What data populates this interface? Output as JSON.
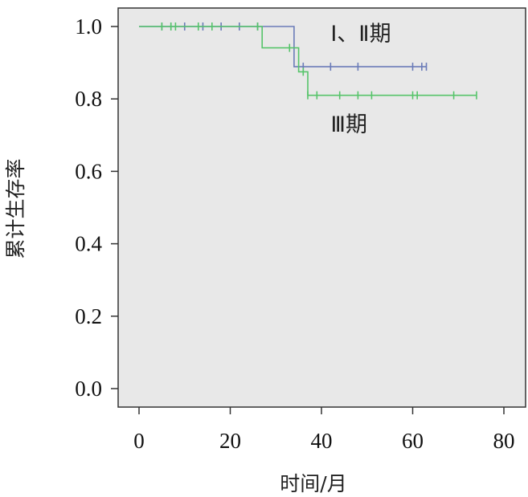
{
  "chart_data": {
    "type": "line",
    "step": true,
    "xlabel": "时间/月",
    "ylabel": "累计生存率",
    "xlim": [
      0,
      80
    ],
    "ylim": [
      0,
      1
    ],
    "x_ticks": [
      "0",
      "20",
      "40",
      "60",
      "80"
    ],
    "y_ticks": [
      "0.0",
      "0.2",
      "0.4",
      "0.6",
      "0.8",
      "1.0"
    ],
    "x_tick_values": [
      0,
      20,
      40,
      60,
      80
    ],
    "y_tick_values": [
      0,
      0.2,
      0.4,
      0.6,
      0.8,
      1.0
    ],
    "grid": false,
    "plot_background": "#e8e8e8",
    "series": [
      {
        "name": "Ⅰ、Ⅱ期",
        "color": "#6a7bb8",
        "steps": [
          [
            0,
            1.0
          ],
          [
            34,
            1.0
          ],
          [
            34,
            0.889
          ],
          [
            63,
            0.889
          ]
        ],
        "censored": [
          [
            5,
            1.0
          ],
          [
            7,
            1.0
          ],
          [
            10,
            1.0
          ],
          [
            14,
            1.0
          ],
          [
            18,
            1.0
          ],
          [
            22,
            1.0
          ],
          [
            26,
            1.0
          ],
          [
            36,
            0.889
          ],
          [
            42,
            0.889
          ],
          [
            48,
            0.889
          ],
          [
            60,
            0.889
          ],
          [
            62,
            0.889
          ],
          [
            63,
            0.889
          ]
        ],
        "label_value": [
          42,
          0.96
        ]
      },
      {
        "name": "Ⅲ期",
        "color": "#56c46a",
        "steps": [
          [
            0,
            1.0
          ],
          [
            27,
            1.0
          ],
          [
            27,
            0.941
          ],
          [
            35,
            0.941
          ],
          [
            35,
            0.875
          ],
          [
            37,
            0.875
          ],
          [
            37,
            0.81
          ],
          [
            74,
            0.81
          ]
        ],
        "censored": [
          [
            5,
            1.0
          ],
          [
            7,
            1.0
          ],
          [
            8,
            1.0
          ],
          [
            13,
            1.0
          ],
          [
            16,
            1.0
          ],
          [
            26,
            1.0
          ],
          [
            33,
            0.941
          ],
          [
            36,
            0.875
          ],
          [
            37,
            0.81
          ],
          [
            39,
            0.81
          ],
          [
            44,
            0.81
          ],
          [
            48,
            0.81
          ],
          [
            51,
            0.81
          ],
          [
            60,
            0.81
          ],
          [
            61,
            0.81
          ],
          [
            69,
            0.81
          ],
          [
            74,
            0.81
          ]
        ],
        "label_value": [
          42,
          0.71
        ]
      }
    ]
  }
}
